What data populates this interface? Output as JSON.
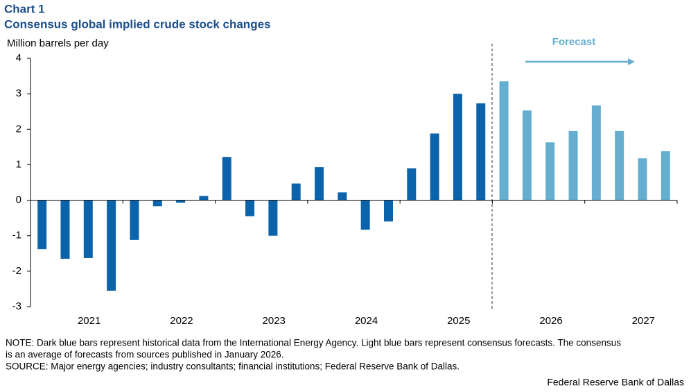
{
  "chart_data": {
    "type": "bar",
    "label": "Chart 1",
    "title": "Consensus global implied crude stock changes",
    "ylabel": "Million barrels per day",
    "annotation": "Forecast",
    "year_labels": [
      "2021",
      "2022",
      "2023",
      "2024",
      "2025",
      "2026",
      "2027"
    ],
    "categories": [
      null,
      null,
      null,
      null,
      null,
      null,
      null,
      null,
      null,
      null,
      null,
      null,
      null,
      null,
      null,
      null,
      null,
      null,
      null,
      null,
      null,
      null,
      null,
      null,
      null,
      null,
      null,
      null
    ],
    "values": [
      -1.38,
      -1.65,
      -1.63,
      -2.55,
      -1.12,
      -0.17,
      -0.07,
      0.12,
      1.22,
      -0.45,
      -1.0,
      0.47,
      0.93,
      0.22,
      -0.83,
      -0.6,
      0.9,
      1.88,
      3.0,
      2.73,
      3.35,
      2.53,
      1.63,
      1.95,
      2.67,
      1.95,
      1.18,
      1.38
    ],
    "colors": [
      "#0b63ac",
      "#0b63ac",
      "#0b63ac",
      "#0b63ac",
      "#0b63ac",
      "#0b63ac",
      "#0b63ac",
      "#0b63ac",
      "#0b63ac",
      "#0b63ac",
      "#0b63ac",
      "#0b63ac",
      "#0b63ac",
      "#0b63ac",
      "#0b63ac",
      "#0b63ac",
      "#0b63ac",
      "#0b63ac",
      "#0b63ac",
      "#0b63ac",
      "#66aecf",
      "#66aecf",
      "#66aecf",
      "#66aecf",
      "#66aecf",
      "#66aecf",
      "#66aecf",
      "#66aecf"
    ],
    "ylim": [
      -3,
      4
    ],
    "yticks": [
      -3,
      -2,
      -1,
      0,
      1,
      2,
      3,
      4
    ],
    "notes": [
      "NOTE: Dark blue bars represent historical data from the International Energy Agency. Light blue bars represent consensus forecasts. The consensus",
      "is an average of forecasts from sources published in January 2026.",
      "SOURCE: Major energy agencies; industry consultants; financial institutions; Federal Reserve Bank of Dallas."
    ],
    "credit": "Federal Reserve Bank of Dallas"
  }
}
